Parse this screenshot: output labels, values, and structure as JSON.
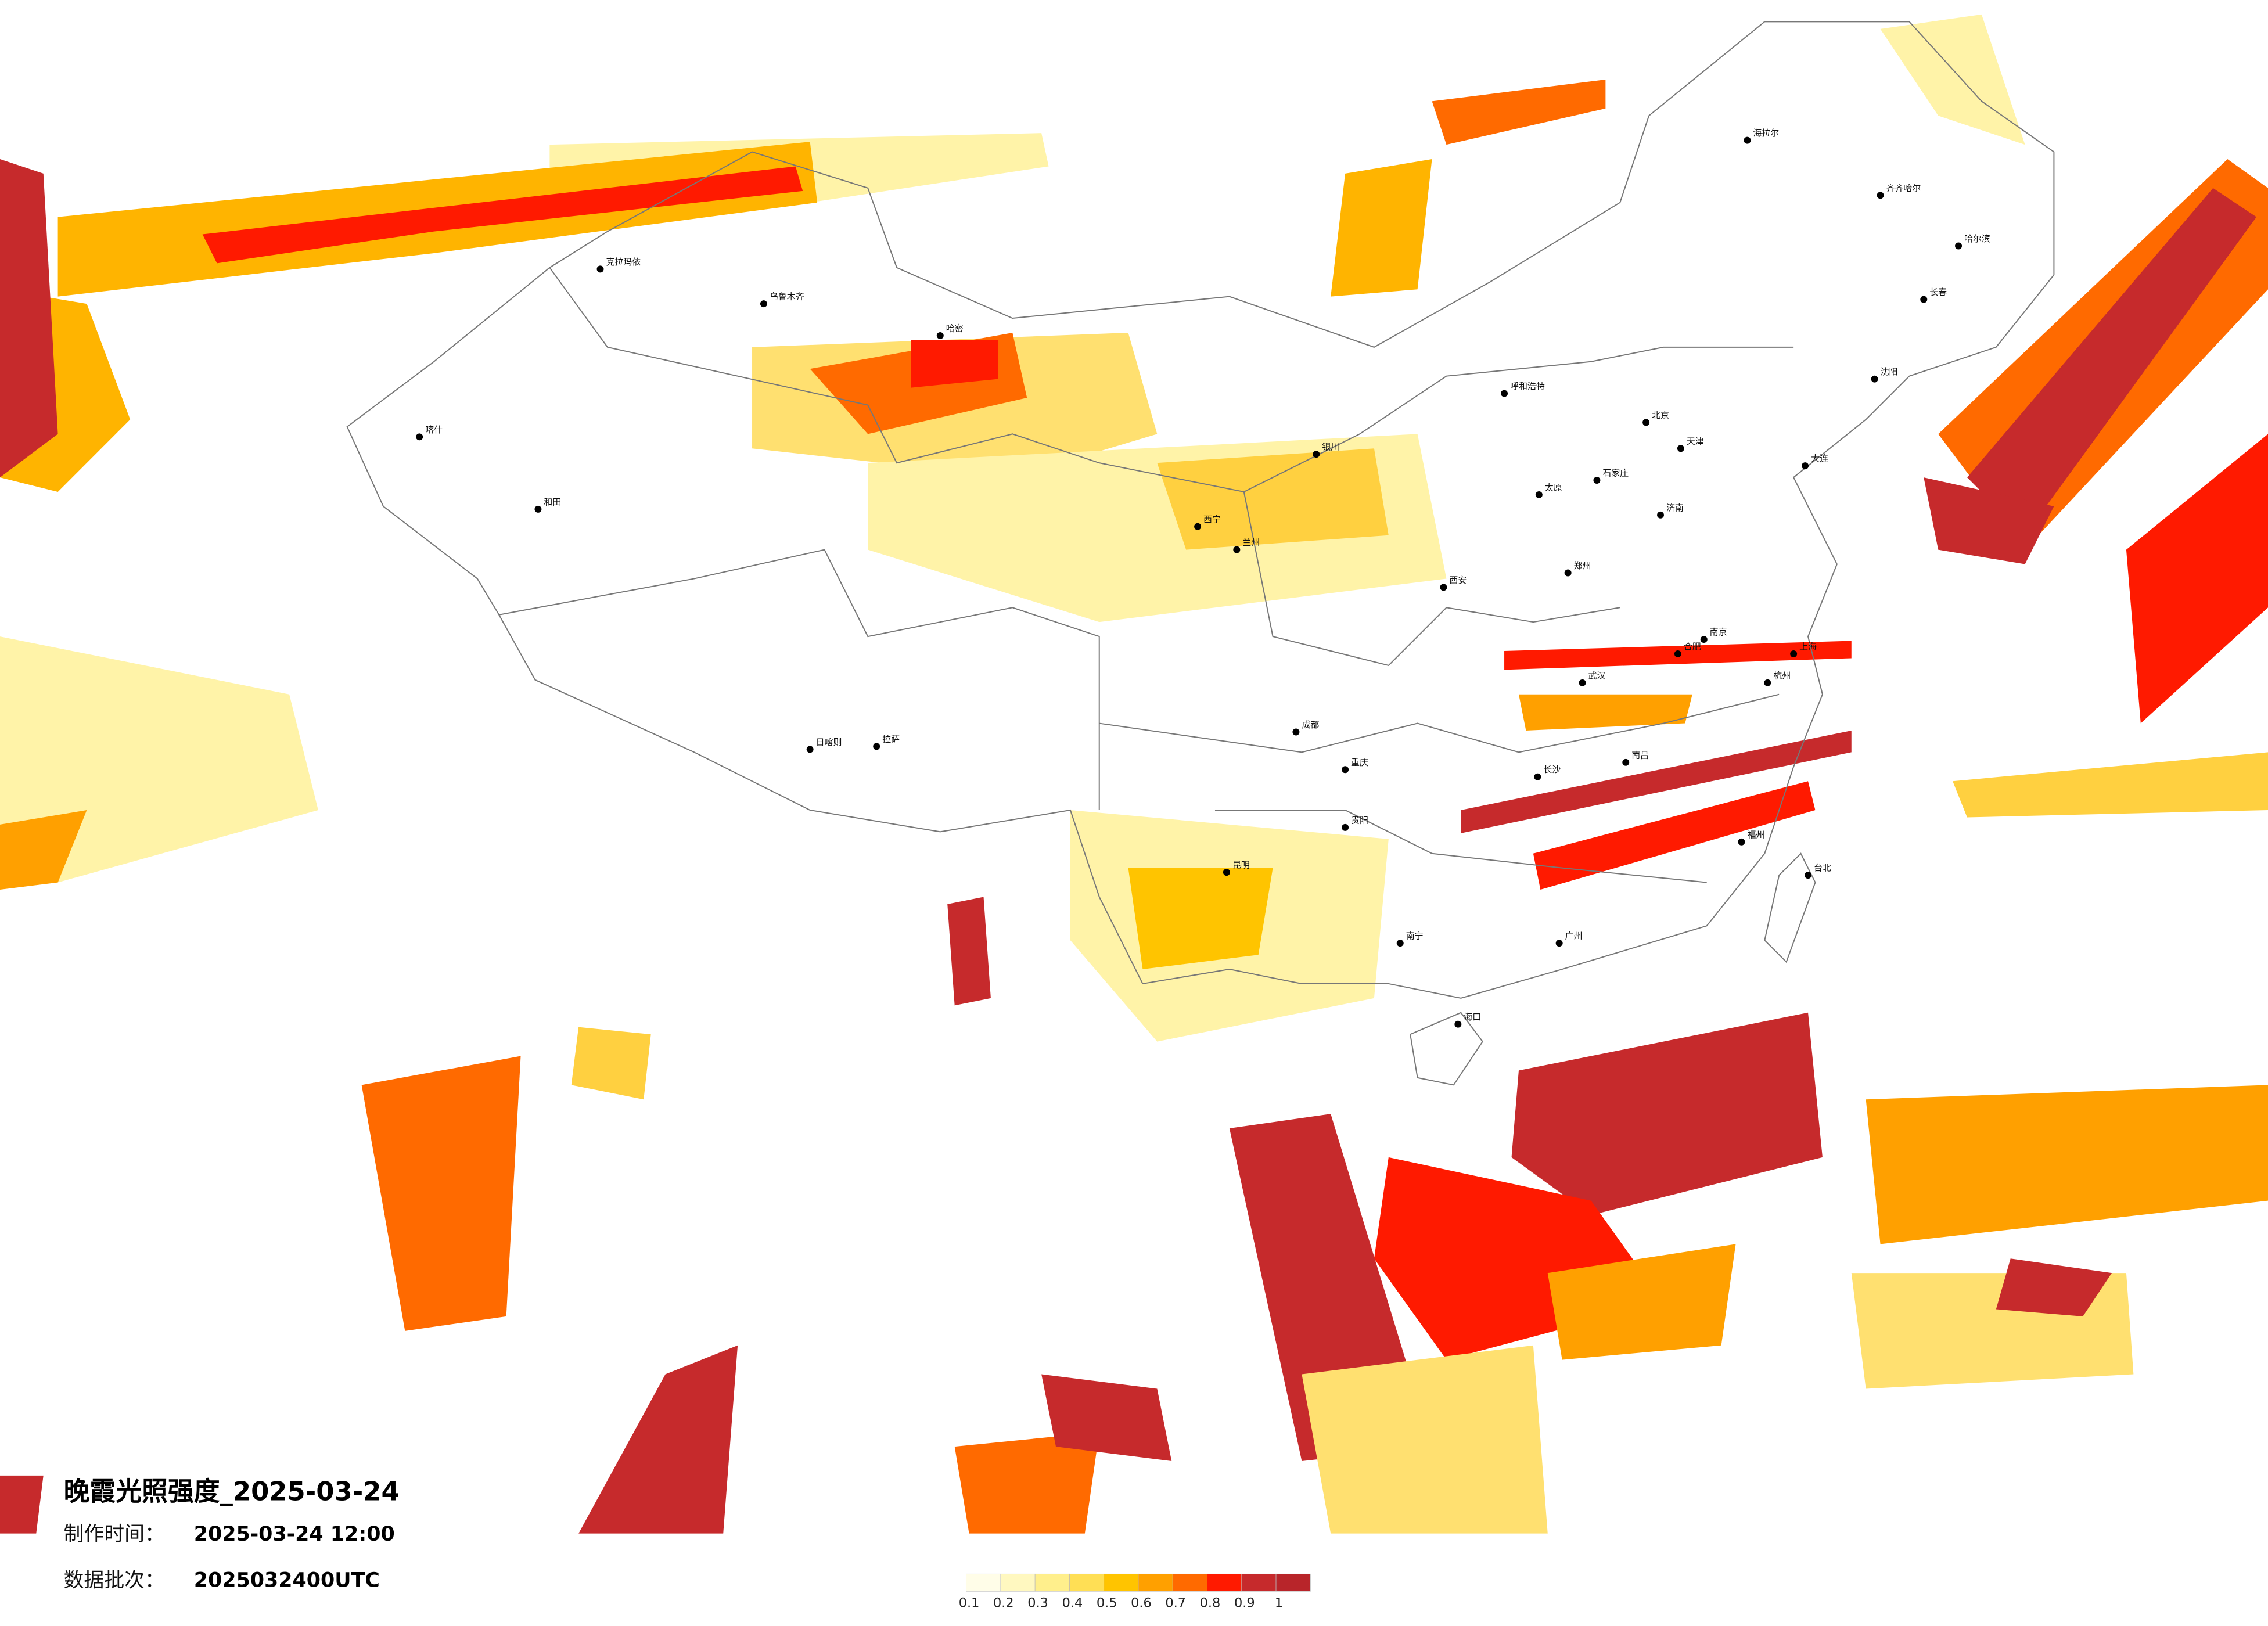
{
  "title": "晚霞光照强度_2025-03-24",
  "made_time_label": "制作时间：",
  "made_time": "2025-03-24 12:00",
  "batch_label": "数据批次：",
  "batch": "2025032400UTC",
  "legend": {
    "colors": [
      "#fffde8",
      "#fff8c0",
      "#ffef8c",
      "#ffdf55",
      "#ffc400",
      "#ffa000",
      "#ff6a00",
      "#ff1a00",
      "#c62a2c",
      "#b8252a"
    ],
    "labels": [
      0.1,
      0.2,
      0.3,
      0.4,
      0.5,
      0.6,
      0.7,
      0.8,
      0.9,
      1
    ]
  },
  "cities": [
    "乌鲁木齐",
    "哈密",
    "拉萨",
    "日喀则",
    "西宁",
    "兰州",
    "银川",
    "呼和浩特",
    "北京",
    "天津",
    "石家庄",
    "太原",
    "济南",
    "郑州",
    "西安",
    "成都",
    "重庆",
    "贵阳",
    "昆明",
    "南宁",
    "广州",
    "长沙",
    "武汉",
    "南昌",
    "南京",
    "上海",
    "杭州",
    "福州",
    "合肥",
    "哈尔滨",
    "长春",
    "沈阳",
    "海口",
    "台北",
    "喀什",
    "海拉尔",
    "齐齐哈尔",
    "大连",
    "克拉玛依",
    "和田"
  ]
}
